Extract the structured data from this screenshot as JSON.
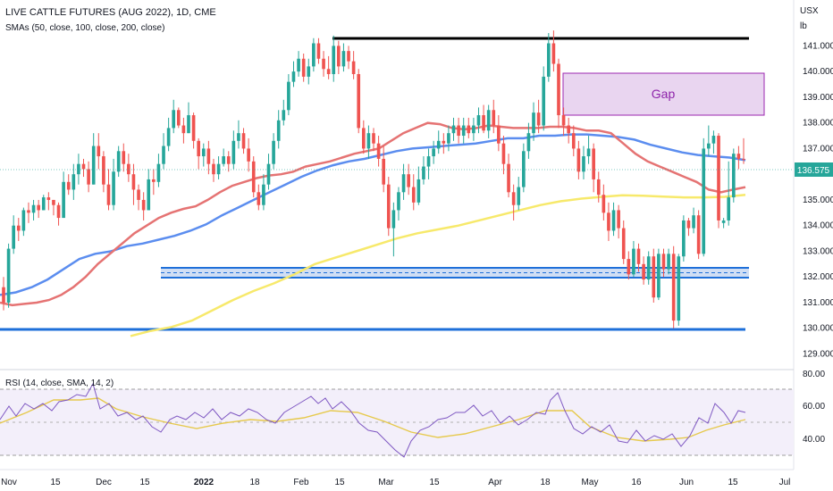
{
  "header": {
    "title": "LIVE CATTLE FUTURES (AUG 2022), 1D, CME",
    "sma_label": "SMAs (50, close, 100, close, 200, close)",
    "currency": "USX",
    "unit": "lb",
    "current_price": "136.575"
  },
  "annotation": {
    "gap_label": "Gap"
  },
  "rsi": {
    "label": "RSI (14, close, SMA, 14, 2)",
    "ticks": [
      "80.00",
      "60.00",
      "40.00"
    ]
  },
  "colors": {
    "up": "#26a69a",
    "down": "#ef5350",
    "sma50": "#e57373",
    "sma100": "#5b8def",
    "sma200": "#f7e96b",
    "rsi": "#7e57c2",
    "rsi_ma": "#e6c94c",
    "gap_fill": "#e9d5f0",
    "gap_stroke": "#9c27b0",
    "support": "#1e6fd9",
    "resistance": "#000000"
  },
  "chart_data": {
    "type": "candlestick",
    "y_ticks": [
      "141.000",
      "140.000",
      "139.000",
      "138.000",
      "137.000",
      "136.000",
      "135.000",
      "134.000",
      "133.000",
      "132.000",
      "131.000",
      "130.000",
      "129.000"
    ],
    "ylim": [
      128.6,
      142.3
    ],
    "x_ticks": [
      "Nov",
      "15",
      "Dec",
      "15",
      "2022",
      "18",
      "Feb",
      "15",
      "Mar",
      "15",
      "Apr",
      "18",
      "May",
      "16",
      "Jun",
      "15",
      "Jul"
    ],
    "grid": false,
    "candles": [
      [
        131.6,
        131.0,
        130.7,
        132.0
      ],
      [
        131.0,
        133.1,
        130.8,
        133.3
      ],
      [
        133.1,
        134.0,
        132.9,
        134.4
      ],
      [
        134.0,
        133.8,
        133.4,
        134.3
      ],
      [
        133.8,
        134.6,
        133.6,
        134.7
      ],
      [
        134.6,
        134.5,
        134.1,
        134.9
      ],
      [
        134.5,
        134.8,
        134.2,
        135.0
      ],
      [
        134.8,
        134.6,
        134.3,
        135.0
      ],
      [
        134.6,
        135.1,
        134.6,
        135.2
      ],
      [
        135.1,
        135.0,
        134.6,
        135.3
      ],
      [
        135.0,
        134.8,
        134.4,
        135.0
      ],
      [
        134.8,
        134.3,
        134.0,
        134.9
      ],
      [
        134.3,
        135.7,
        134.3,
        136.1
      ],
      [
        135.7,
        135.4,
        135.2,
        136.0
      ],
      [
        135.4,
        136.0,
        135.0,
        136.4
      ],
      [
        136.0,
        136.4,
        135.6,
        136.8
      ],
      [
        136.4,
        136.2,
        135.9,
        136.6
      ],
      [
        136.2,
        135.6,
        135.3,
        136.5
      ],
      [
        135.6,
        137.1,
        135.6,
        137.6
      ],
      [
        137.1,
        136.7,
        136.2,
        137.6
      ],
      [
        136.7,
        135.6,
        135.3,
        136.9
      ],
      [
        135.6,
        134.8,
        134.6,
        136.2
      ],
      [
        134.8,
        136.1,
        134.6,
        136.6
      ],
      [
        136.1,
        136.9,
        135.9,
        137.1
      ],
      [
        136.9,
        136.4,
        136.1,
        137.2
      ],
      [
        136.4,
        136.0,
        135.7,
        136.8
      ],
      [
        136.0,
        135.4,
        134.8,
        136.4
      ],
      [
        135.4,
        135.0,
        134.6,
        135.6
      ],
      [
        135.0,
        134.6,
        134.2,
        135.3
      ],
      [
        134.6,
        135.8,
        134.6,
        136.2
      ],
      [
        135.8,
        135.7,
        135.2,
        136.2
      ],
      [
        135.7,
        136.4,
        135.5,
        136.8
      ],
      [
        136.4,
        137.1,
        136.2,
        137.6
      ],
      [
        137.1,
        137.8,
        136.9,
        138.2
      ],
      [
        137.8,
        138.5,
        137.6,
        138.9
      ],
      [
        138.5,
        137.9,
        137.8,
        138.6
      ],
      [
        137.9,
        137.6,
        137.2,
        138.2
      ],
      [
        137.6,
        138.3,
        137.6,
        138.8
      ],
      [
        138.3,
        137.3,
        137.0,
        138.4
      ],
      [
        137.3,
        136.7,
        136.2,
        137.4
      ],
      [
        136.7,
        137.0,
        136.3,
        137.2
      ],
      [
        137.0,
        136.4,
        136.0,
        137.3
      ],
      [
        136.4,
        136.0,
        135.7,
        136.6
      ],
      [
        136.0,
        136.4,
        135.8,
        136.7
      ],
      [
        136.4,
        136.7,
        136.3,
        137.0
      ],
      [
        136.7,
        136.4,
        136.1,
        136.9
      ],
      [
        136.4,
        137.3,
        136.2,
        137.7
      ],
      [
        137.3,
        137.6,
        137.0,
        138.1
      ],
      [
        137.6,
        137.0,
        136.8,
        137.8
      ],
      [
        137.0,
        136.5,
        136.1,
        137.4
      ],
      [
        136.5,
        135.3,
        135.1,
        136.7
      ],
      [
        135.3,
        134.8,
        134.6,
        135.6
      ],
      [
        134.8,
        135.6,
        134.6,
        136.0
      ],
      [
        135.6,
        136.4,
        135.4,
        136.8
      ],
      [
        136.4,
        137.3,
        136.2,
        137.6
      ],
      [
        137.3,
        138.1,
        137.0,
        138.5
      ],
      [
        138.1,
        138.5,
        137.9,
        138.9
      ],
      [
        138.5,
        139.6,
        138.3,
        139.9
      ],
      [
        139.6,
        140.0,
        139.4,
        140.4
      ],
      [
        140.0,
        140.5,
        139.8,
        140.8
      ],
      [
        140.5,
        139.8,
        139.6,
        140.7
      ],
      [
        139.8,
        140.2,
        139.5,
        140.5
      ],
      [
        140.2,
        141.1,
        140.0,
        141.3
      ],
      [
        141.1,
        140.5,
        140.3,
        141.3
      ],
      [
        140.5,
        140.1,
        139.8,
        140.8
      ],
      [
        140.1,
        139.9,
        139.7,
        140.6
      ],
      [
        139.9,
        141.0,
        139.6,
        141.4
      ],
      [
        141.0,
        140.2,
        139.9,
        141.2
      ],
      [
        140.2,
        140.8,
        140.0,
        141.1
      ],
      [
        140.8,
        140.4,
        140.1,
        141.0
      ],
      [
        140.4,
        139.9,
        139.7,
        140.8
      ],
      [
        139.9,
        137.8,
        137.6,
        140.1
      ],
      [
        137.8,
        137.0,
        136.8,
        138.1
      ],
      [
        137.0,
        137.6,
        136.6,
        137.9
      ],
      [
        137.6,
        137.2,
        136.9,
        137.8
      ],
      [
        137.2,
        136.6,
        136.3,
        137.5
      ],
      [
        136.6,
        135.6,
        135.3,
        137.1
      ],
      [
        135.6,
        133.9,
        133.6,
        135.9
      ],
      [
        133.9,
        134.6,
        132.8,
        134.9
      ],
      [
        134.6,
        135.3,
        134.2,
        135.5
      ],
      [
        135.3,
        136.0,
        135.0,
        136.4
      ],
      [
        136.0,
        135.5,
        135.2,
        136.4
      ],
      [
        135.5,
        134.9,
        134.6,
        136.0
      ],
      [
        134.9,
        135.8,
        134.8,
        136.3
      ],
      [
        135.8,
        136.3,
        135.6,
        136.7
      ],
      [
        136.3,
        136.7,
        135.8,
        137.0
      ],
      [
        136.7,
        137.0,
        136.4,
        137.3
      ],
      [
        137.0,
        137.3,
        136.8,
        137.7
      ],
      [
        137.3,
        137.2,
        136.8,
        137.6
      ],
      [
        137.2,
        137.6,
        136.9,
        137.9
      ],
      [
        137.6,
        137.9,
        137.3,
        138.2
      ],
      [
        137.9,
        137.5,
        137.2,
        138.2
      ],
      [
        137.5,
        137.9,
        137.2,
        138.2
      ],
      [
        137.9,
        137.6,
        137.4,
        138.2
      ],
      [
        137.6,
        137.9,
        137.3,
        138.2
      ],
      [
        137.9,
        138.3,
        137.6,
        138.6
      ],
      [
        138.3,
        137.7,
        137.6,
        138.7
      ],
      [
        137.7,
        138.5,
        137.4,
        138.7
      ],
      [
        138.5,
        137.9,
        137.6,
        138.9
      ],
      [
        137.9,
        137.2,
        136.9,
        138.3
      ],
      [
        137.2,
        136.4,
        136.0,
        137.5
      ],
      [
        136.4,
        135.3,
        135.1,
        136.8
      ],
      [
        135.3,
        134.8,
        134.2,
        135.6
      ],
      [
        134.8,
        135.5,
        134.6,
        135.9
      ],
      [
        135.5,
        136.9,
        135.3,
        137.2
      ],
      [
        136.9,
        137.6,
        136.6,
        138.0
      ],
      [
        137.6,
        138.4,
        137.3,
        138.8
      ],
      [
        138.4,
        137.9,
        137.6,
        138.9
      ],
      [
        137.9,
        139.8,
        137.7,
        140.2
      ],
      [
        139.8,
        141.1,
        139.6,
        141.5
      ],
      [
        141.1,
        140.3,
        140.0,
        141.6
      ],
      [
        140.3,
        138.3,
        137.8,
        140.5
      ],
      [
        138.3,
        137.9,
        137.5,
        138.6
      ],
      [
        137.9,
        137.6,
        137.2,
        138.2
      ],
      [
        137.6,
        137.0,
        136.7,
        137.9
      ],
      [
        137.0,
        136.1,
        135.8,
        137.3
      ],
      [
        136.1,
        136.7,
        135.8,
        137.1
      ],
      [
        136.7,
        137.0,
        136.4,
        137.5
      ],
      [
        137.0,
        135.8,
        135.3,
        137.2
      ],
      [
        135.8,
        135.2,
        134.9,
        136.1
      ],
      [
        135.2,
        134.5,
        134.2,
        135.6
      ],
      [
        134.5,
        133.8,
        133.4,
        134.9
      ],
      [
        133.8,
        134.6,
        133.6,
        134.9
      ],
      [
        134.6,
        133.9,
        133.5,
        134.8
      ],
      [
        133.9,
        132.7,
        132.5,
        134.2
      ],
      [
        132.7,
        132.1,
        131.9,
        133.0
      ],
      [
        132.1,
        133.1,
        132.0,
        133.4
      ],
      [
        133.1,
        132.5,
        132.2,
        133.3
      ],
      [
        132.5,
        131.9,
        131.7,
        132.8
      ],
      [
        131.9,
        132.8,
        131.7,
        133.0
      ],
      [
        132.8,
        131.2,
        131.0,
        133.1
      ],
      [
        131.2,
        132.9,
        131.1,
        133.1
      ],
      [
        132.9,
        132.3,
        132.0,
        133.1
      ],
      [
        132.3,
        132.9,
        132.1,
        133.1
      ],
      [
        132.9,
        130.3,
        130.0,
        133.2
      ],
      [
        130.3,
        132.8,
        130.1,
        132.9
      ],
      [
        132.8,
        134.2,
        132.6,
        134.4
      ],
      [
        134.2,
        133.9,
        133.6,
        134.3
      ],
      [
        133.9,
        134.4,
        133.7,
        134.7
      ],
      [
        134.4,
        132.9,
        132.7,
        134.6
      ],
      [
        132.9,
        137.0,
        132.8,
        137.4
      ],
      [
        137.0,
        137.2,
        136.7,
        137.9
      ],
      [
        137.2,
        137.5,
        136.8,
        137.7
      ],
      [
        137.5,
        134.2,
        133.9,
        137.6
      ],
      [
        134.1,
        134.2,
        133.9,
        134.3
      ],
      [
        134.2,
        135.1,
        134.0,
        136.5
      ],
      [
        135.1,
        136.8,
        134.9,
        137.0
      ],
      [
        136.8,
        136.6,
        136.2,
        137.1
      ],
      [
        136.6,
        136.575,
        136.4,
        137.4
      ]
    ],
    "sma50": [
      131.0,
      130.9,
      130.95,
      131.0,
      131.1,
      131.3,
      131.6,
      132.0,
      132.5,
      132.9,
      133.3,
      133.7,
      134.0,
      134.3,
      134.5,
      134.65,
      134.75,
      135.0,
      135.3,
      135.55,
      135.7,
      135.85,
      135.95,
      136.0,
      136.1,
      136.3,
      136.4,
      136.5,
      136.65,
      136.8,
      136.9,
      137.0,
      137.3,
      137.6,
      137.8,
      138.0,
      137.95,
      137.8,
      137.75,
      137.8,
      137.9,
      137.85,
      137.8,
      137.8,
      137.8,
      137.85,
      137.85,
      137.8,
      137.7,
      137.7,
      137.6,
      137.2,
      136.8,
      136.5,
      136.3,
      136.1,
      135.9,
      135.7,
      135.4,
      135.3,
      135.4,
      135.5
    ],
    "sma100": [
      131.3,
      131.4,
      131.6,
      131.9,
      132.3,
      132.7,
      132.9,
      133.0,
      133.2,
      133.3,
      133.45,
      133.6,
      133.8,
      134.05,
      134.4,
      134.7,
      135.0,
      135.3,
      135.6,
      135.9,
      136.15,
      136.35,
      136.5,
      136.6,
      136.75,
      136.9,
      137.0,
      137.05,
      137.1,
      137.15,
      137.2,
      137.3,
      137.4,
      137.4,
      137.5,
      137.5,
      137.55,
      137.55,
      137.5,
      137.45,
      137.35,
      137.15,
      137.0,
      136.85,
      136.75,
      136.7,
      136.65,
      136.55
    ],
    "sma200": [
      129.7,
      129.9,
      130.05,
      130.3,
      130.7,
      131.1,
      131.45,
      131.75,
      132.1,
      132.5,
      132.75,
      133.0,
      133.25,
      133.5,
      133.7,
      133.85,
      134.0,
      134.2,
      134.4,
      134.6,
      134.8,
      134.95,
      135.05,
      135.12,
      135.18,
      135.16,
      135.13,
      135.1,
      135.1,
      135.12,
      135.2
    ]
  }
}
